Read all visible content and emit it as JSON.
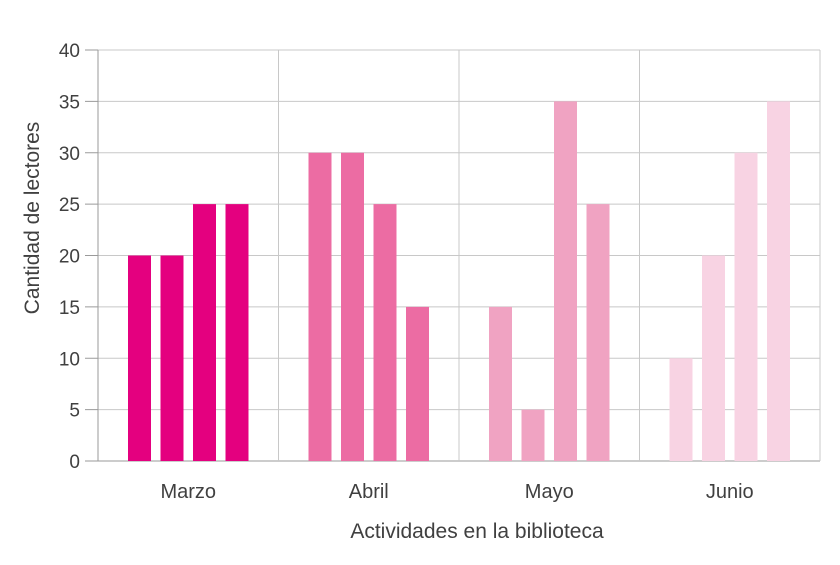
{
  "chart_data": {
    "type": "bar",
    "categories": [
      "Marzo",
      "Abril",
      "Mayo",
      "Junio"
    ],
    "values": [
      [
        20,
        20,
        25,
        25
      ],
      [
        30,
        30,
        25,
        15
      ],
      [
        15,
        5,
        35,
        25
      ],
      [
        10,
        20,
        30,
        35
      ]
    ],
    "group_colors": [
      "#e4007f",
      "#ec6ca3",
      "#f0a3c2",
      "#f8d3e3"
    ],
    "title": "",
    "xlabel": "Actividades en la biblioteca",
    "ylabel": "Cantidad de lectores",
    "ylim": [
      0,
      40
    ],
    "yticks": [
      0,
      5,
      10,
      15,
      20,
      25,
      30,
      35,
      40
    ],
    "grid": true
  }
}
